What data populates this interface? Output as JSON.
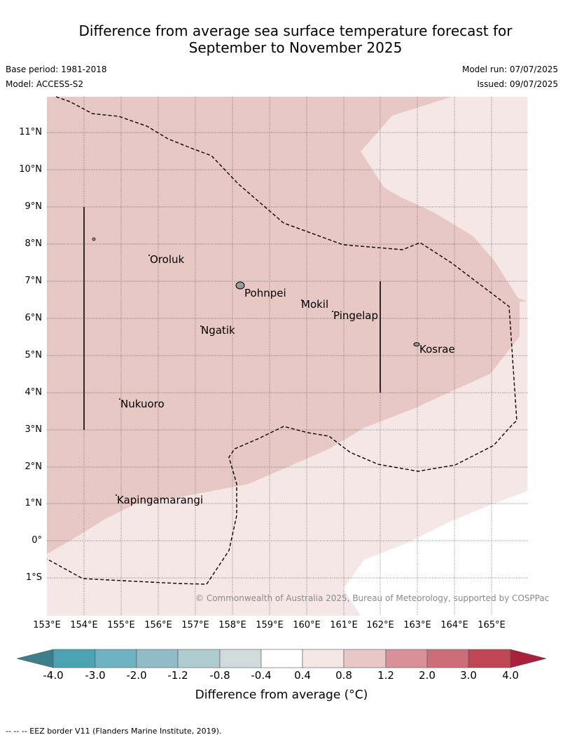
{
  "title_line1": "Difference from average sea surface temperature forecast for",
  "title_line2": "September to November 2025",
  "base_period": "Base period: 1981-2018",
  "model": "Model: ACCESS-S2",
  "model_run": "Model run: 07/07/2025",
  "issued": "Issued: 09/07/2025",
  "map": {
    "lat_labels": [
      "11°N",
      "10°N",
      "9°N",
      "8°N",
      "7°N",
      "6°N",
      "5°N",
      "4°N",
      "3°N",
      "2°N",
      "1°N",
      "0°",
      "1°S"
    ],
    "lon_labels": [
      "153°E",
      "154°E",
      "155°E",
      "156°E",
      "157°E",
      "158°E",
      "159°E",
      "160°E",
      "161°E",
      "162°E",
      "163°E",
      "164°E",
      "165°E"
    ],
    "places": {
      "oroluk": "Oroluk",
      "pohnpei": "Pohnpei",
      "mokil": "Mokil",
      "pingelap": "Pingelap",
      "ngatik": "Ngatik",
      "kosrae": "Kosrae",
      "nukuoro": "Nukuoro",
      "kapingamarangi": "Kapingamarangi"
    },
    "region_colors": {
      "0.8_to_1.2": "#e7c8c4",
      "0.4_to_0.8": "#f4e7e6",
      "minus0.4_to_0.4": "#ffffff"
    },
    "copyright": "© Commonwealth of Australia 2025, Bureau of Meteorology, supported by COSPPac"
  },
  "colorbar": {
    "ticks": [
      "-4.0",
      "-3.0",
      "-2.0",
      "-1.2",
      "-0.8",
      "-0.4",
      "0.4",
      "0.8",
      "1.2",
      "2.0",
      "3.0",
      "4.0"
    ],
    "colors": [
      "#3a7f8b",
      "#4aa3b2",
      "#6db2c1",
      "#8fbcc6",
      "#aecbce",
      "#d2dbdc",
      "#ffffff",
      "#f4e7e6",
      "#e7c8c4",
      "#d99199",
      "#cd6d79",
      "#c04656",
      "#a8203c"
    ],
    "title": "Difference from average (°C)"
  },
  "footnote": "--  --  -- EEZ border V11 (Flanders Marine Institute, 2019)."
}
